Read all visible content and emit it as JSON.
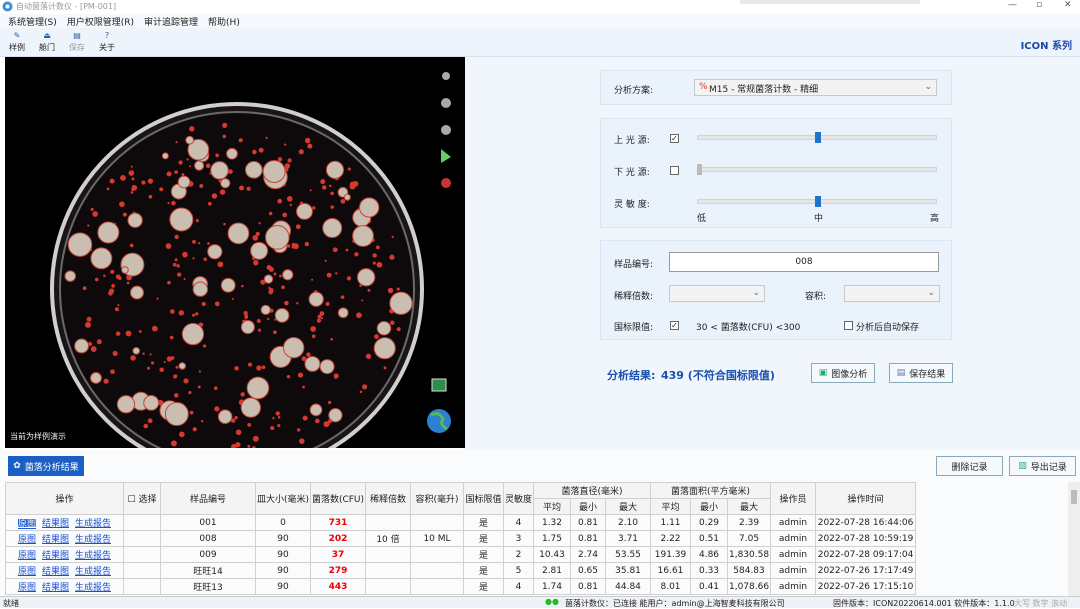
{
  "window": {
    "title": "自动菌落计数仪 - [PM-001]"
  },
  "menu": [
    "系统管理(S)",
    "用户权限管理(R)",
    "审计追踪管理",
    "帮助(H)"
  ],
  "toolbar": [
    "样例",
    "舱门",
    "保存",
    "关于"
  ],
  "brand": "ICON 系列",
  "image_panel": {
    "caption": "当前为样例演示"
  },
  "settings": {
    "scheme_label": "分析方案:",
    "scheme_value": "M15 - 常规菌落计数 - 精细",
    "upper_light": "上 光 源:",
    "lower_light": "下 光 源:",
    "sensitivity": "灵 敏 度:",
    "sensitivity_scale": [
      "低",
      "中",
      "高"
    ],
    "sample_label": "样品编号:",
    "sample_value": "008",
    "dilution_label": "稀释倍数:",
    "volume_label": "容积:",
    "limit_label": "国标限值:",
    "limit_value": "30 < 菌落数(CFU) <300",
    "auto_save": "分析后自动保存"
  },
  "result": {
    "label": "分析结果:",
    "value": "439 (不符合国标限值)"
  },
  "buttons": {
    "analyze": "图像分析",
    "save": "保存结果",
    "results_tab": "菌落分析结果",
    "delete": "删除记录",
    "export": "导出记录"
  },
  "table": {
    "columns": [
      {
        "label": "操作"
      },
      {
        "label": "☐ 选择"
      },
      {
        "label": "样品编号"
      },
      {
        "label": "皿大小(毫米)"
      },
      {
        "label": "菌落数(CFU)"
      },
      {
        "label": "稀释倍数"
      },
      {
        "label": "容积(毫升)"
      },
      {
        "label": "国标限值"
      },
      {
        "label": "灵敏度"
      },
      {
        "label": "菌落直径(毫米)",
        "sub": [
          "平均",
          "最小",
          "最大"
        ]
      },
      {
        "label": "菌落面积(平方毫米)",
        "sub": [
          "平均",
          "最小",
          "最大"
        ]
      },
      {
        "label": "操作员"
      },
      {
        "label": "操作时间"
      }
    ],
    "rows": [
      {
        "actions": [
          "原图",
          "结果图",
          "生成报告"
        ],
        "cells": [
          null,
          "001",
          "0",
          "731",
          null,
          null,
          "是",
          "4",
          "1.32",
          "0.81",
          "2.10",
          "1.11",
          "0.29",
          "2.39",
          "admin",
          "2022-07-28 16:44:06"
        ]
      },
      {
        "actions": [
          "原图",
          "结果图",
          "生成报告"
        ],
        "cells": [
          null,
          "008",
          "90",
          "202",
          "10 倍",
          "10 ML",
          "是",
          "3",
          "1.75",
          "0.81",
          "3.71",
          "2.22",
          "0.51",
          "7.05",
          "admin",
          "2022-07-28 10:59:19"
        ]
      },
      {
        "actions": [
          "原图",
          "结果图",
          "生成报告"
        ],
        "cells": [
          null,
          "009",
          "90",
          "37",
          null,
          null,
          "是",
          "2",
          "10.43",
          "2.74",
          "53.55",
          "191.39",
          "4.86",
          "1,830.58",
          "admin",
          "2022-07-28 09:17:04"
        ]
      },
      {
        "actions": [
          "原图",
          "结果图",
          "生成报告"
        ],
        "cells": [
          null,
          "旺旺14",
          "90",
          "279",
          null,
          null,
          "是",
          "5",
          "2.81",
          "0.65",
          "35.81",
          "16.61",
          "0.33",
          "584.83",
          "admin",
          "2022-07-26 17:17:49"
        ]
      },
      {
        "actions": [
          "原图",
          "结果图",
          "生成报告"
        ],
        "cells": [
          null,
          "旺旺13",
          "90",
          "443",
          null,
          null,
          "是",
          "4",
          "1.74",
          "0.81",
          "44.84",
          "8.01",
          "0.41",
          "1,078.66",
          "admin",
          "2022-07-26 17:15:10"
        ]
      }
    ]
  },
  "status": {
    "ready": "就绪",
    "device": "菌落计数仪：已连接  能用户：admin@上海智麦科技有限公司",
    "version": "固件版本：ICON20220614.001  软件版本：1.1.0",
    "keys": "大写  数字  滚动"
  }
}
